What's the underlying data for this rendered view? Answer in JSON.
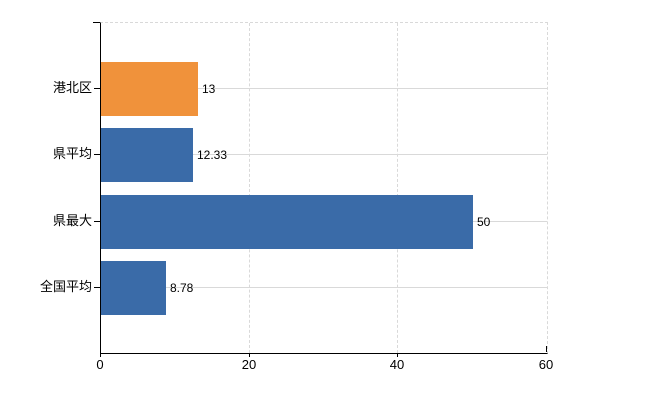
{
  "chart_data": {
    "type": "bar",
    "orientation": "horizontal",
    "title": "",
    "xlabel": "",
    "ylabel": "",
    "categories": [
      "港北区",
      "県平均",
      "県最大",
      "全国平均"
    ],
    "values": [
      13,
      12.33,
      50,
      8.78
    ],
    "value_labels": [
      "13",
      "12.33",
      "50",
      "8.78"
    ],
    "series": [
      {
        "name": "value",
        "values": [
          13,
          12.33,
          50,
          8.78
        ],
        "colors": [
          "#F0923B",
          "#3A6BA8",
          "#3A6BA8",
          "#3A6BA8"
        ]
      }
    ],
    "xlim": [
      0,
      60
    ],
    "x_ticks": [
      0,
      20,
      40,
      60
    ],
    "x_tick_labels": [
      "0",
      "20",
      "40",
      "60"
    ],
    "grid": {
      "horizontal_style": "solid",
      "vertical_style": "dashed",
      "top_border_style": "dashed",
      "color": "#D9D9D9"
    },
    "legend_position": "none"
  },
  "colors": {
    "highlight_bar": "#F0923B",
    "default_bar": "#3A6BA8",
    "axis": "#000000",
    "grid": "#D9D9D9",
    "text": "#000000",
    "background": "#FFFFFF"
  }
}
